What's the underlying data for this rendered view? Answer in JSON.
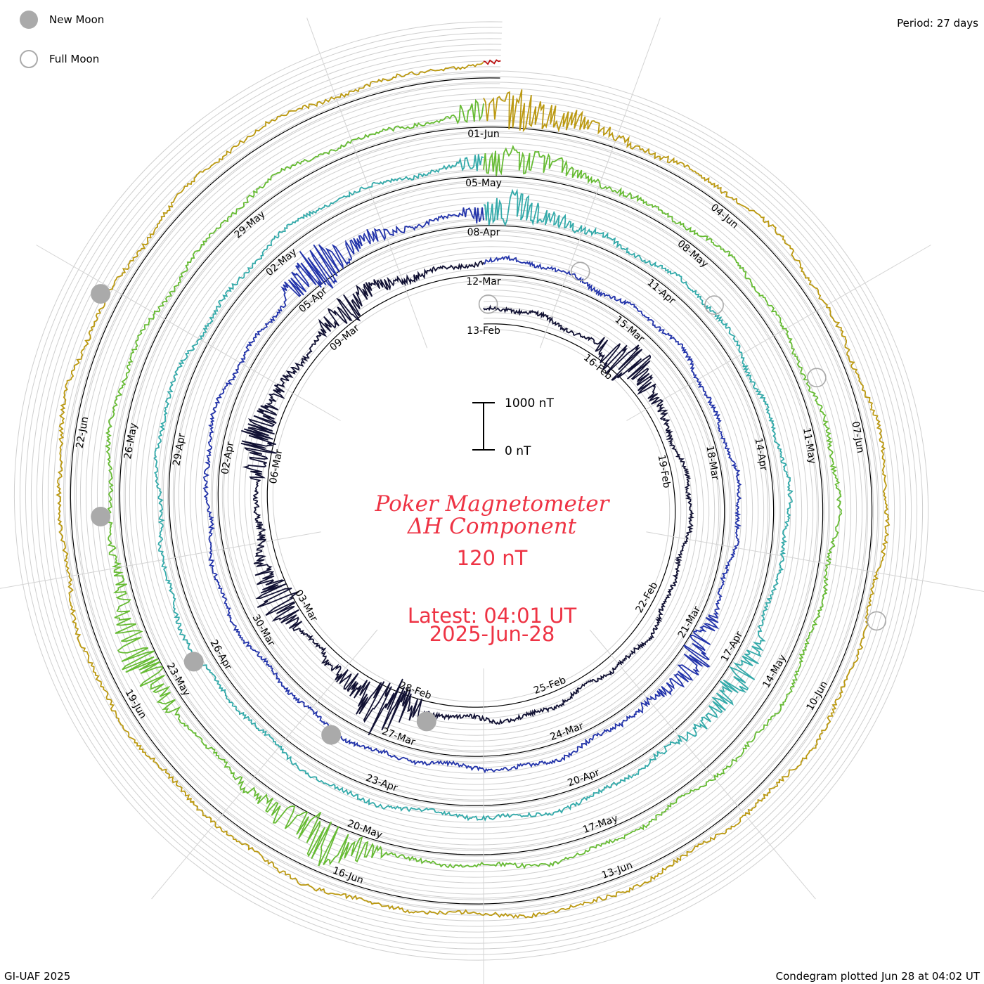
{
  "legend": {
    "new_moon_label": "New Moon",
    "full_moon_label": "Full Moon",
    "new_moon_color": "#aaaaaa",
    "full_moon_color": "#aaaaaa"
  },
  "header": {
    "period_label": "Period: 27 days"
  },
  "footer": {
    "credit": "GI-UAF 2025",
    "plotted": "Condegram plotted Jun 28 at 04:02 UT"
  },
  "center": {
    "title_line1": "Poker Magnetometer",
    "title_line2": "ΔH Component",
    "scale_value": "120 nT",
    "latest_label": "Latest: 04:01 UT",
    "latest_date": "2025-Jun-28",
    "scale_bar_top": "1000 nT",
    "scale_bar_bottom": "0 nT",
    "text_color": "#ee3344"
  },
  "chart_data": {
    "type": "line",
    "subtype": "condegram-spiral",
    "period_days": 27,
    "scale_bar_nT": [
      0,
      1000
    ],
    "grid": true,
    "rotations": [
      {
        "start": "13-Feb",
        "color": "#111133"
      },
      {
        "start": "12-Mar",
        "color": "#2233aa"
      },
      {
        "start": "08-Apr",
        "color": "#33aaaa"
      },
      {
        "start": "05-May",
        "color": "#66bb33"
      },
      {
        "start": "01-Jun",
        "color": "#bb9911"
      },
      {
        "start": "28-Jun",
        "color": "#bb1111"
      }
    ],
    "tick_labels": [
      [
        "13-Feb",
        "16-Feb",
        "19-Feb",
        "22-Feb",
        "25-Feb",
        "28-Feb",
        "03-Mar",
        "06-Mar",
        "09-Mar"
      ],
      [
        "12-Mar",
        "15-Mar",
        "18-Mar",
        "21-Mar",
        "24-Mar",
        "27-Mar",
        "30-Mar",
        "02-Apr",
        "05-Apr"
      ],
      [
        "08-Apr",
        "11-Apr",
        "14-Apr",
        "17-Apr",
        "20-Apr",
        "23-Apr",
        "26-Apr",
        "29-Apr",
        "02-May"
      ],
      [
        "05-May",
        "08-May",
        "11-May",
        "14-May",
        "17-May",
        "20-May",
        "23-May",
        "26-May",
        "29-May"
      ],
      [
        "01-Jun",
        "04-Jun",
        "07-Jun",
        "10-Jun",
        "13-Jun",
        "16-Jun",
        "19-Jun",
        "22-Jun"
      ]
    ],
    "disturbances_nT": [
      {
        "date": "16-Feb",
        "dH": 650
      },
      {
        "date": "28-Feb",
        "dH": 560
      },
      {
        "date": "12-Mar",
        "dH": 420
      },
      {
        "date": "15-Mar",
        "dH": 520
      },
      {
        "date": "18-Mar",
        "dH": 560
      },
      {
        "date": "21-Mar",
        "dH": 380
      },
      {
        "date": "02-Apr",
        "dH": 420
      },
      {
        "date": "17-Apr",
        "dH": 620
      },
      {
        "date": "20-Apr",
        "dH": 460
      },
      {
        "date": "29-Apr",
        "dH": 360
      },
      {
        "date": "17-May",
        "dH": 420
      },
      {
        "date": "01-Jun",
        "dH": 620
      },
      {
        "date": "04-Jun",
        "dH": 480
      },
      {
        "date": "13-Jun",
        "dH": 540
      }
    ]
  }
}
